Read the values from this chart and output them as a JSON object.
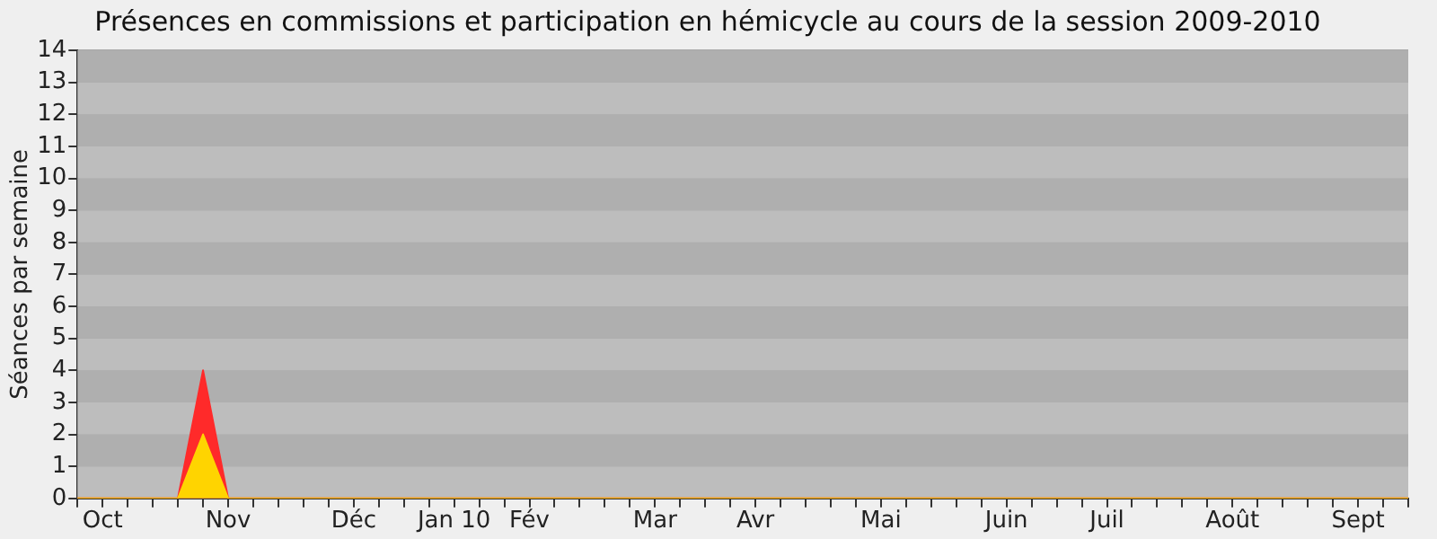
{
  "chart_data": {
    "type": "area",
    "title": "Présences en commissions et participation en hémicycle au cours de la session 2009-2010",
    "ylabel": "Séances par semaine",
    "categories": [
      null,
      "Oct",
      null,
      null,
      null,
      null,
      "Nov",
      null,
      null,
      null,
      null,
      "Déc",
      null,
      null,
      null,
      "Jan 10",
      null,
      null,
      "Fév",
      null,
      null,
      null,
      null,
      "Mar",
      null,
      null,
      null,
      "Avr",
      null,
      null,
      null,
      null,
      "Mai",
      null,
      null,
      null,
      null,
      "Juin",
      null,
      null,
      null,
      "Juil",
      null,
      null,
      null,
      null,
      "Août",
      null,
      null,
      null,
      null,
      "Sept",
      null,
      null
    ],
    "series": [
      {
        "color": "#ff2a2a",
        "values": [
          0,
          0,
          0,
          0,
          0,
          4,
          0,
          0,
          0,
          0,
          0,
          0,
          0,
          0,
          0,
          0,
          0,
          0,
          0,
          0,
          0,
          0,
          0,
          0,
          0,
          0,
          0,
          0,
          0,
          0,
          0,
          0,
          0,
          0,
          0,
          0,
          0,
          0,
          0,
          0,
          0,
          0,
          0,
          0,
          0,
          0,
          0,
          0,
          0,
          0,
          0,
          0,
          0,
          0
        ]
      },
      {
        "color": "#ffd400",
        "values": [
          0,
          0,
          0,
          0,
          0,
          2,
          0,
          0,
          0,
          0,
          0,
          0,
          0,
          0,
          0,
          0,
          0,
          0,
          0,
          0,
          0,
          0,
          0,
          0,
          0,
          0,
          0,
          0,
          0,
          0,
          0,
          0,
          0,
          0,
          0,
          0,
          0,
          0,
          0,
          0,
          0,
          0,
          0,
          0,
          0,
          0,
          0,
          0,
          0,
          0,
          0,
          0,
          0,
          0
        ]
      }
    ],
    "ylim": [
      0,
      14
    ],
    "yticks": [
      0,
      1,
      2,
      3,
      4,
      5,
      6,
      7,
      8,
      9,
      10,
      11,
      12,
      13,
      14
    ],
    "grid": "y",
    "legend": false,
    "marker": "none"
  }
}
